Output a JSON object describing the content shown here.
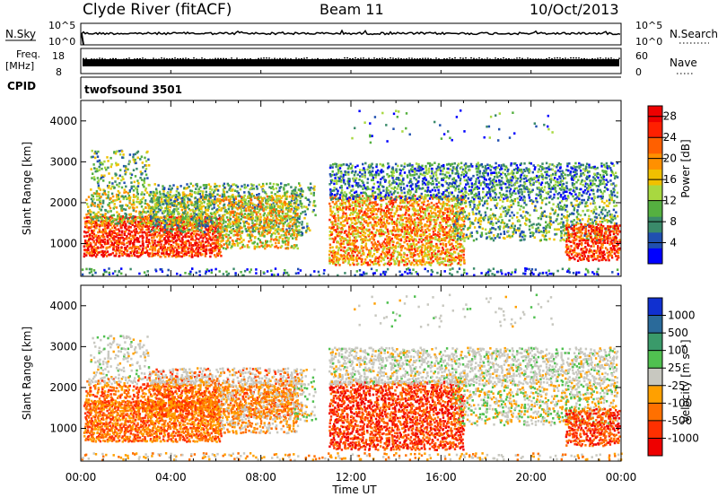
{
  "header": {
    "title": "Clyde River (fitACF)",
    "beam": "Beam 11",
    "date": "10/Oct/2013"
  },
  "noise_panel": {
    "left_label": "N.Sky",
    "right_label": "N.Search",
    "left_ticks": [
      "10^5",
      "10^0"
    ],
    "right_ticks": [
      "10^5",
      "10^0"
    ]
  },
  "freq_panel": {
    "label_line1": "Freq.",
    "label_line2": "[MHz]",
    "right_label": "Nave",
    "left_ticks": [
      "18",
      "8"
    ],
    "right_ticks": [
      "60",
      "0"
    ]
  },
  "cpid_panel": {
    "label": "CPID",
    "text": "twofsound 3501"
  },
  "colors": {
    "power_scale": [
      "#0000ff",
      "#2050b0",
      "#3a8a6a",
      "#55b040",
      "#a8d840",
      "#f0c000",
      "#ff9000",
      "#ff6000",
      "#ff2000",
      "#ee0000"
    ],
    "velocity_scale": [
      "#ee0000",
      "#ff3000",
      "#ff7000",
      "#ffa000",
      "#c8c8c0",
      "#50c050",
      "#3a9a6a",
      "#2a6a9a",
      "#1030d0"
    ]
  },
  "chart_data": [
    {
      "type": "heatmap",
      "name": "power",
      "ylabel": "Slant Range [km]",
      "yticks": [
        "1000",
        "2000",
        "3000",
        "4000"
      ],
      "ylim": [
        200,
        4500
      ],
      "xlim_hours": [
        0,
        24
      ],
      "colorbar_label": "Power [dB]",
      "colorbar_ticks": [
        "4",
        "8",
        "12",
        "16",
        "20",
        "24",
        "28"
      ],
      "colorbar_range": [
        0,
        30
      ]
    },
    {
      "type": "heatmap",
      "name": "velocity",
      "ylabel": "Slant Range [km]",
      "yticks": [
        "1000",
        "2000",
        "3000",
        "4000"
      ],
      "ylim": [
        200,
        4500
      ],
      "xlim_hours": [
        0,
        24
      ],
      "colorbar_label": "Velocity [m s⁻¹]",
      "colorbar_ticks": [
        "1000",
        "500",
        "100",
        "25",
        "-25",
        "-100",
        "-500",
        "-1000"
      ]
    }
  ],
  "time_axis": {
    "ticks": [
      "00:00",
      "04:00",
      "08:00",
      "12:00",
      "16:00",
      "20:00",
      "00:00"
    ],
    "label": "Time UT"
  }
}
